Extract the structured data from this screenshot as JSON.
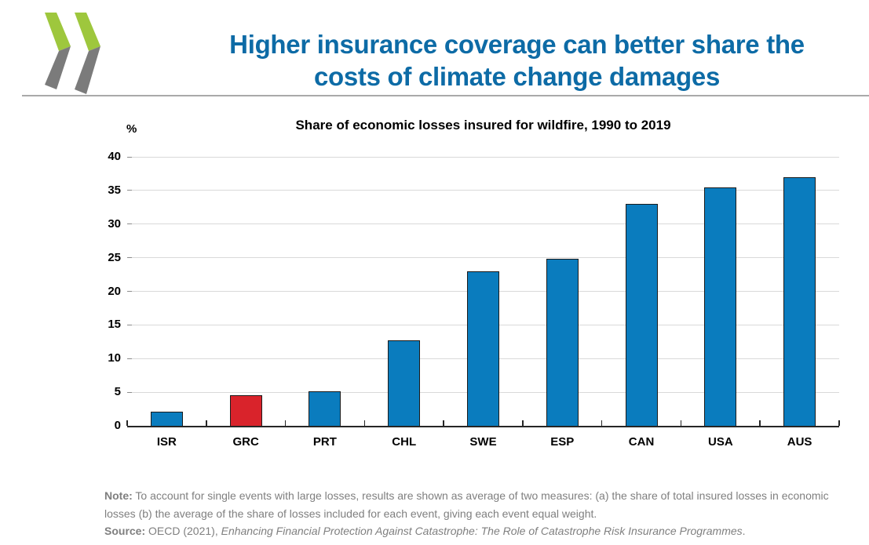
{
  "header": {
    "title_line1": "Higher insurance coverage can better share the",
    "title_line2": "costs of climate change damages"
  },
  "icons": {
    "logo": "oecd-double-chevron-logo"
  },
  "colors": {
    "title_blue": "#0d6ba6",
    "bar_blue": "#0a7cbe",
    "bar_red": "#d9232b",
    "bar_border": "#1b1b1b",
    "gridline_gray": "#d9d9d9",
    "axis_black": "#262626",
    "note_gray": "#7f7f7f",
    "logo_green": "#9ec73d",
    "logo_gray": "#7b7b7b",
    "divider_gray": "#a9a9a9"
  },
  "chart_data": {
    "type": "bar",
    "title": "Share of economic losses insured for wildfire, 1990 to 2019",
    "unit_label": "%",
    "categories": [
      "ISR",
      "GRC",
      "PRT",
      "CHL",
      "SWE",
      "ESP",
      "CAN",
      "USA",
      "AUS"
    ],
    "values": [
      2.1,
      4.6,
      5.1,
      12.7,
      23,
      24.8,
      33,
      35.5,
      37
    ],
    "bar_colors": [
      "blue",
      "red",
      "blue",
      "blue",
      "blue",
      "blue",
      "blue",
      "blue",
      "blue"
    ],
    "highlight_category": "GRC",
    "ylim": [
      0,
      40
    ],
    "yticks": [
      0,
      5,
      10,
      15,
      20,
      25,
      30,
      35,
      40
    ],
    "grid": true,
    "legend": false
  },
  "note": {
    "note_label": "Note:",
    "note_text": " To account for single events with large losses, results are shown as average of two measures: (a) the share of total insured losses in economic losses (b) the average of the share of losses included for each event, giving each event equal weight.",
    "source_label": "Source:",
    "source_prefix": " OECD (2021), ",
    "source_title": "Enhancing Financial Protection Against Catastrophe: The Role of Catastrophe Risk Insurance Programmes",
    "source_suffix": "."
  }
}
